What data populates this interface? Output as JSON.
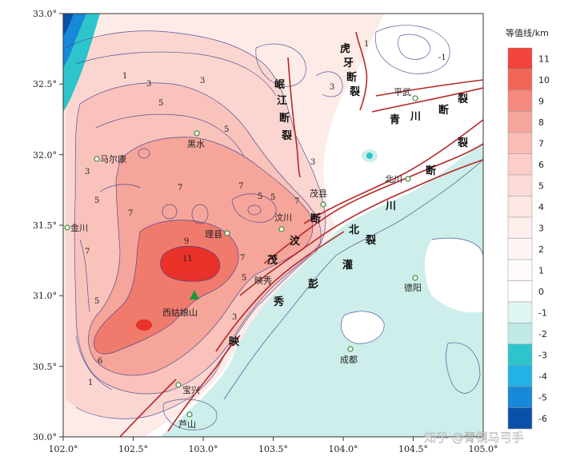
{
  "axes": {
    "x_ticks": [
      "102.0°",
      "102.5°",
      "103.0°",
      "103.5°",
      "104.0°",
      "104.5°",
      "105.0°"
    ],
    "y_ticks": [
      "33.0°",
      "32.5°",
      "32.0°",
      "31.5°",
      "31.0°",
      "30.5°",
      "30.0°"
    ]
  },
  "legend": {
    "title": "等值线/km",
    "levels": [
      {
        "label": "11",
        "color": "#f0443c"
      },
      {
        "label": "10",
        "color": "#f36459"
      },
      {
        "label": "9",
        "color": "#f58a7f"
      },
      {
        "label": "8",
        "color": "#f7a69d"
      },
      {
        "label": "7",
        "color": "#f9bdb6"
      },
      {
        "label": "6",
        "color": "#fbcec9"
      },
      {
        "label": "5",
        "color": "#fcdcd8"
      },
      {
        "label": "4",
        "color": "#fde6e3"
      },
      {
        "label": "3",
        "color": "#feeeec"
      },
      {
        "label": "2",
        "color": "#fff5f4"
      },
      {
        "label": "1",
        "color": "#fffafa"
      },
      {
        "label": "0",
        "color": "#ffffff"
      },
      {
        "label": "-1",
        "color": "#def5f2"
      },
      {
        "label": "-2",
        "color": "#bfeae6"
      },
      {
        "label": "-3",
        "color": "#2ec4cc"
      },
      {
        "label": "-4",
        "color": "#22b2e6"
      },
      {
        "label": "-5",
        "color": "#1888d8"
      },
      {
        "label": "-6",
        "color": "#0a4fa8"
      }
    ]
  },
  "cities": [
    {
      "name": "马尔康",
      "marker": "circle"
    },
    {
      "name": "黑水",
      "marker": "circle"
    },
    {
      "name": "金川",
      "marker": "circle"
    },
    {
      "name": "理县",
      "marker": "circle"
    },
    {
      "name": "汶川",
      "marker": "circle"
    },
    {
      "name": "茂县",
      "marker": "circle"
    },
    {
      "name": "平武",
      "marker": "circle"
    },
    {
      "name": "北川",
      "marker": "circle"
    },
    {
      "name": "映秀",
      "marker": "none"
    },
    {
      "name": "德阳",
      "marker": "circle"
    },
    {
      "name": "成都",
      "marker": "circle"
    },
    {
      "name": "宝兴",
      "marker": "circle"
    },
    {
      "name": "芦山",
      "marker": "circle"
    }
  ],
  "peak": {
    "name": "西姑娘山"
  },
  "faults": {
    "huya": [
      "虎",
      "牙",
      "断",
      "裂"
    ],
    "minjiang": [
      "岷",
      "江",
      "断",
      "裂"
    ],
    "qingchuan": [
      "青",
      "川",
      "断",
      "裂"
    ],
    "beichuan": [
      "北",
      "川",
      "断",
      "裂"
    ],
    "wenmao": [
      "茂",
      "汶",
      "断",
      "裂"
    ],
    "pengguan": [
      "灌",
      "彭",
      "秀",
      "映"
    ]
  },
  "contour_labels": [
    "1",
    "3",
    "3",
    "5",
    "5",
    "5",
    "7",
    "7",
    "7",
    "9",
    "11",
    "5",
    "7",
    "7",
    "5",
    "3",
    "5",
    "6",
    "3",
    "1",
    "5",
    "3",
    "3",
    "-1",
    "1",
    "7"
  ],
  "watermark": "知乎 @青铜马弓手"
}
